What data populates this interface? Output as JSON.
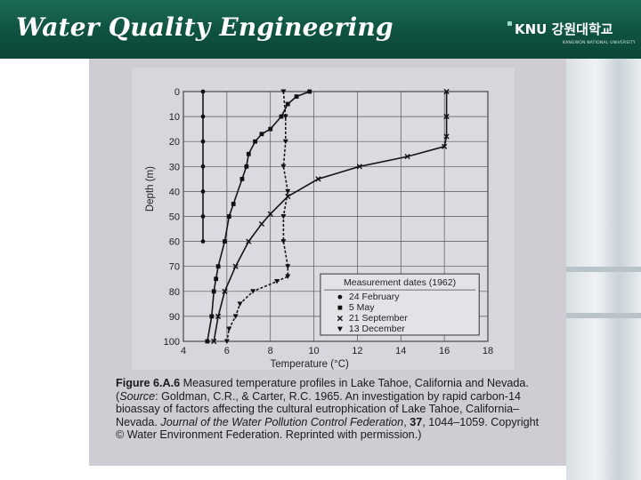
{
  "slide": {
    "title": "Water Quality Engineering",
    "logo_text": "KNU 강원대학교",
    "logo_subtext": "KANGWON NATIONAL UNIVERSITY"
  },
  "chart_data": {
    "type": "line",
    "xlabel": "Temperature (°C)",
    "ylabel": "Depth (m)",
    "xlim": [
      4,
      18
    ],
    "ylim": [
      100,
      0
    ],
    "xticks": [
      4,
      6,
      8,
      10,
      12,
      14,
      16,
      18
    ],
    "yticks": [
      0,
      10,
      20,
      30,
      40,
      50,
      60,
      70,
      80,
      90,
      100
    ],
    "grid": true,
    "legend_title": "Measurement dates (1962)",
    "legend_position": "bottom-right",
    "series": [
      {
        "name": "24 February",
        "marker": "circle",
        "style": "solid",
        "points": [
          [
            4.9,
            0
          ],
          [
            4.9,
            10
          ],
          [
            4.9,
            20
          ],
          [
            4.9,
            30
          ],
          [
            4.9,
            40
          ],
          [
            4.9,
            50
          ],
          [
            4.9,
            60
          ]
        ]
      },
      {
        "name": "5 May",
        "marker": "square",
        "style": "solid",
        "points": [
          [
            9.8,
            0
          ],
          [
            9.2,
            2
          ],
          [
            8.8,
            5
          ],
          [
            8.5,
            10
          ],
          [
            8.0,
            15
          ],
          [
            7.6,
            17
          ],
          [
            7.3,
            20
          ],
          [
            7.0,
            25
          ],
          [
            6.9,
            30
          ],
          [
            6.7,
            35
          ],
          [
            6.3,
            45
          ],
          [
            6.1,
            50
          ],
          [
            5.9,
            60
          ],
          [
            5.6,
            70
          ],
          [
            5.5,
            75
          ],
          [
            5.4,
            80
          ],
          [
            5.3,
            90
          ],
          [
            5.1,
            100
          ]
        ]
      },
      {
        "name": "21 September",
        "marker": "x",
        "style": "solid",
        "points": [
          [
            16.1,
            0
          ],
          [
            16.1,
            10
          ],
          [
            16.1,
            18
          ],
          [
            16.0,
            22
          ],
          [
            14.3,
            26
          ],
          [
            12.1,
            30
          ],
          [
            10.2,
            35
          ],
          [
            8.8,
            42
          ],
          [
            8.0,
            49
          ],
          [
            7.6,
            53
          ],
          [
            7.0,
            60
          ],
          [
            6.4,
            70
          ],
          [
            5.9,
            80
          ],
          [
            5.6,
            90
          ],
          [
            5.4,
            100
          ]
        ]
      },
      {
        "name": "13 December",
        "marker": "triangle",
        "style": "dashed",
        "points": [
          [
            8.6,
            0
          ],
          [
            8.7,
            10
          ],
          [
            8.7,
            20
          ],
          [
            8.6,
            30
          ],
          [
            8.8,
            40
          ],
          [
            8.6,
            50
          ],
          [
            8.6,
            60
          ],
          [
            8.8,
            70
          ],
          [
            8.8,
            74
          ],
          [
            8.3,
            76
          ],
          [
            7.2,
            80
          ],
          [
            6.6,
            85
          ],
          [
            6.4,
            90
          ],
          [
            6.1,
            95
          ],
          [
            6.0,
            100
          ]
        ]
      }
    ]
  },
  "caption": {
    "label": "Figure 6.A.6",
    "text_1": " Measured temperature profiles in Lake Tahoe, California and Nevada. (",
    "source_label": "Source",
    "text_2": ": Goldman, C.R., & Carter, R.C. 1965. An investigation by rapid carbon-14 bioassay of factors affecting the cultural eutrophication of Lake Tahoe, California–Nevada. ",
    "journal": "Journal of the Water Pollution Control Federation",
    "text_3": ", ",
    "volume": "37",
    "text_4": ", 1044–1059. Copyright © Water Environment Federation. Reprinted with permission.)"
  }
}
